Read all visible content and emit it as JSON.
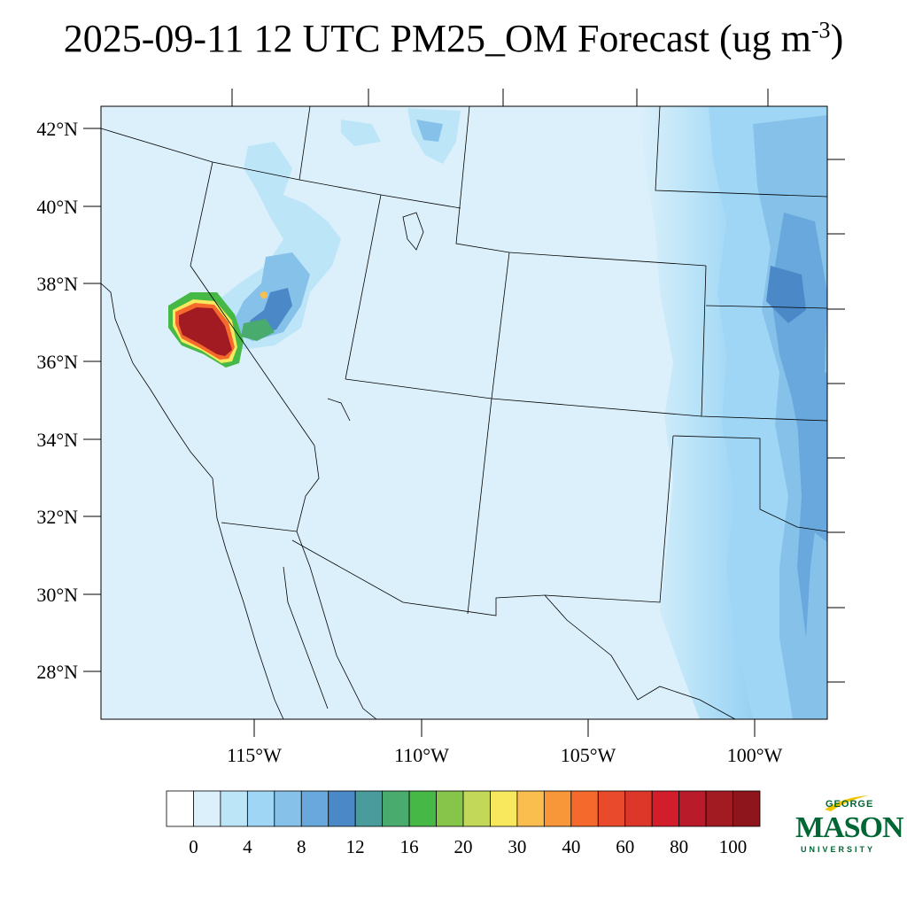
{
  "title": {
    "main": "2025-09-11 12 UTC PM25_OM Forecast (ug m",
    "sup": "-3",
    "close": ")"
  },
  "map": {
    "lat_labels": [
      "42°N",
      "40°N",
      "38°N",
      "36°N",
      "34°N",
      "32°N",
      "30°N",
      "28°N"
    ],
    "lon_labels": [
      "115°W",
      "110°W",
      "105°W",
      "100°W"
    ],
    "background_color": "#dcf0fb"
  },
  "colorbar": {
    "labels": [
      "0",
      "4",
      "8",
      "12",
      "16",
      "20",
      "30",
      "40",
      "60",
      "80",
      "100"
    ],
    "colors": [
      "#ffffff",
      "#dcf0fb",
      "#bde5f8",
      "#9fd6f5",
      "#86c1ea",
      "#69a8dc",
      "#4a88c8",
      "#4a9b9b",
      "#4aab6f",
      "#45b846",
      "#86c44a",
      "#c2d859",
      "#f7e85e",
      "#f9be4e",
      "#f8963a",
      "#f56a2c",
      "#e94a2c",
      "#dc3729",
      "#d21d2b",
      "#b91b2a",
      "#a31b22",
      "#8e151b"
    ]
  },
  "logo": {
    "george": "GEORGE",
    "mason": "MASON",
    "university": "UNIVERSITY"
  }
}
